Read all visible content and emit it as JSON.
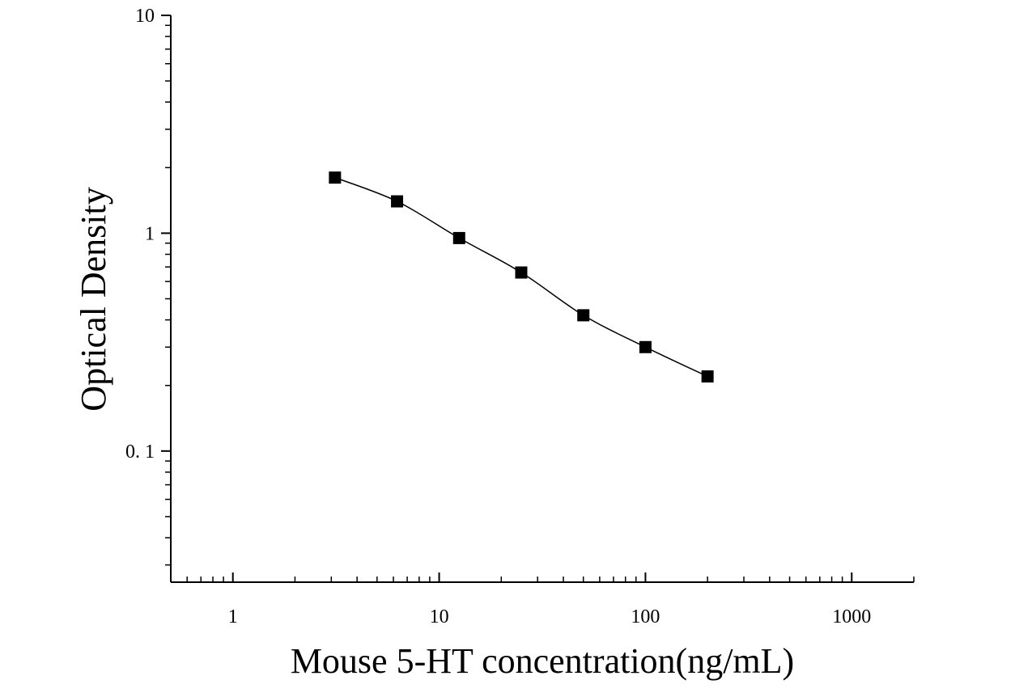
{
  "chart_data": {
    "type": "scatter",
    "title": "",
    "xlabel": "Mouse 5-HT concentration(ng/mL)",
    "ylabel": "Optical Density",
    "x_scale": "log",
    "y_scale": "log",
    "xlim": [
      0.5,
      2000
    ],
    "ylim": [
      0.025,
      10
    ],
    "x_tick_labels": [
      "1",
      "10",
      "100",
      "1000"
    ],
    "y_tick_labels": [
      "0. 1",
      "1",
      "10"
    ],
    "grid": false,
    "legend": "none",
    "marker": "square",
    "color": "#000000",
    "fit_curve": "smooth",
    "series": [
      {
        "x": [
          3.125,
          6.25,
          12.5,
          25,
          50,
          100,
          200
        ],
        "y": [
          1.8,
          1.4,
          0.95,
          0.66,
          0.42,
          0.3,
          0.22
        ]
      }
    ]
  }
}
